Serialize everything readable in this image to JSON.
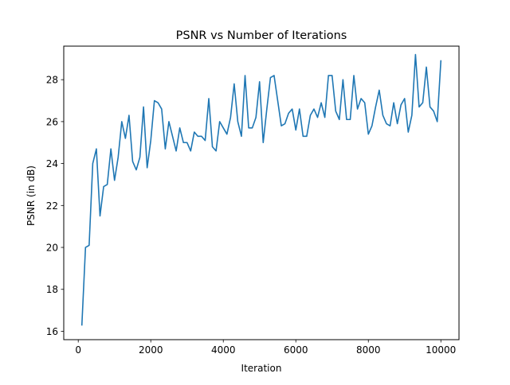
{
  "chart_data": {
    "type": "line",
    "title": "PSNR vs Number of Iterations",
    "xlabel": "Iteration",
    "ylabel": "PSNR (in dB)",
    "xlim": [
      -400,
      10500
    ],
    "ylim": [
      15.6,
      29.6
    ],
    "x_ticks": [
      0,
      2000,
      4000,
      6000,
      8000,
      10000
    ],
    "y_ticks": [
      16,
      18,
      20,
      22,
      24,
      26,
      28
    ],
    "grid": false,
    "legend": "none",
    "line_color": "#1f77b4",
    "series": [
      {
        "x": [
          100,
          200,
          300,
          400,
          500,
          600,
          700,
          800,
          900,
          1000,
          1100,
          1200,
          1300,
          1400,
          1500,
          1600,
          1700,
          1800,
          1900,
          2000,
          2100,
          2200,
          2300,
          2400,
          2500,
          2600,
          2700,
          2800,
          2900,
          3000,
          3100,
          3200,
          3300,
          3400,
          3500,
          3600,
          3700,
          3800,
          3900,
          4000,
          4100,
          4200,
          4300,
          4400,
          4500,
          4600,
          4700,
          4800,
          4900,
          5000,
          5100,
          5200,
          5300,
          5400,
          5500,
          5600,
          5700,
          5800,
          5900,
          6000,
          6100,
          6200,
          6300,
          6400,
          6500,
          6600,
          6700,
          6800,
          6900,
          7000,
          7100,
          7200,
          7300,
          7400,
          7500,
          7600,
          7700,
          7800,
          7900,
          8000,
          8100,
          8200,
          8300,
          8400,
          8500,
          8600,
          8700,
          8800,
          8900,
          9000,
          9100,
          9200,
          9300,
          9400,
          9500,
          9600,
          9700,
          9800,
          9900,
          10000
        ],
        "values": [
          16.3,
          20.0,
          20.1,
          24.0,
          24.7,
          21.5,
          22.9,
          23.0,
          24.7,
          23.2,
          24.3,
          26.0,
          25.2,
          26.3,
          24.1,
          23.7,
          24.3,
          26.7,
          23.8,
          25.1,
          27.0,
          26.9,
          26.6,
          24.7,
          26.0,
          25.3,
          24.6,
          25.7,
          25.0,
          25.0,
          24.6,
          25.5,
          25.3,
          25.3,
          25.1,
          27.1,
          24.8,
          24.6,
          26.0,
          25.7,
          25.4,
          26.2,
          27.8,
          26.0,
          25.3,
          28.2,
          25.7,
          25.7,
          26.2,
          27.9,
          25.0,
          26.6,
          28.1,
          28.2,
          27.0,
          25.8,
          25.9,
          26.4,
          26.6,
          25.6,
          26.6,
          25.3,
          25.3,
          26.3,
          26.6,
          26.2,
          26.9,
          26.2,
          28.2,
          28.2,
          26.5,
          26.1,
          28.0,
          26.1,
          26.1,
          28.2,
          26.6,
          27.1,
          26.9,
          25.4,
          25.8,
          26.7,
          27.5,
          26.3,
          25.9,
          25.8,
          26.9,
          25.9,
          26.8,
          27.1,
          25.5,
          26.3,
          29.2,
          26.7,
          26.9,
          28.6,
          26.7,
          26.5,
          26.0,
          28.9
        ]
      }
    ]
  }
}
